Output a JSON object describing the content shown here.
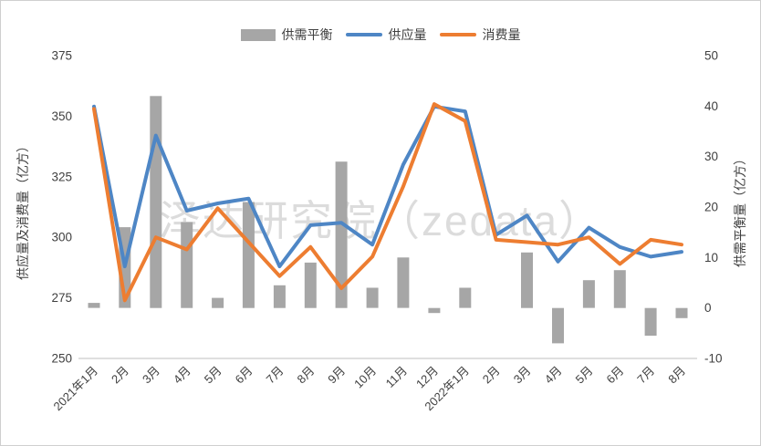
{
  "page": {
    "background": "#ffffff",
    "frame_color": "#cfcfcf",
    "text_color": "#404040"
  },
  "watermark": {
    "text": "泽达研究院（zedata）",
    "color": "#dcdcdc"
  },
  "legend": {
    "items": [
      {
        "label": "供需平衡",
        "type": "bar",
        "color": "#a6a6a6"
      },
      {
        "label": "供应量",
        "type": "line",
        "color": "#4e86c5"
      },
      {
        "label": "消费量",
        "type": "line",
        "color": "#ed7d31"
      }
    ]
  },
  "chart_data": {
    "type": "bar+line-combo",
    "title": "",
    "categories": [
      "2021年1月",
      "2月",
      "3月",
      "4月",
      "5月",
      "6月",
      "7月",
      "8月",
      "9月",
      "10月",
      "11月",
      "12月",
      "2022年1月",
      "2月",
      "3月",
      "4月",
      "5月",
      "6月",
      "7月",
      "8月"
    ],
    "series": [
      {
        "name": "供需平衡",
        "type": "bar",
        "axis": "right",
        "color": "#a6a6a6",
        "values": [
          1,
          16,
          42,
          17,
          2,
          21,
          4.5,
          9,
          29,
          4,
          10,
          -1,
          4,
          0,
          11,
          -7,
          5.5,
          7.5,
          -5.5,
          -2
        ]
      },
      {
        "name": "供应量",
        "type": "line",
        "axis": "left",
        "color": "#4e86c5",
        "values": [
          354,
          288,
          342,
          311,
          314,
          316,
          288,
          305,
          306,
          297,
          330,
          354,
          352,
          301,
          309,
          290,
          304,
          296,
          292,
          294
        ]
      },
      {
        "name": "消费量",
        "type": "line",
        "axis": "left",
        "color": "#ed7d31",
        "values": [
          353,
          274,
          300,
          295,
          312,
          298,
          284,
          296,
          279,
          292,
          321,
          355,
          348,
          299,
          298,
          297,
          300,
          289,
          299,
          297
        ]
      }
    ],
    "left_axis": {
      "title": "供应量及消费量（亿方）",
      "min": 250,
      "max": 375,
      "ticks": [
        375,
        350,
        325,
        300,
        275,
        250
      ]
    },
    "right_axis": {
      "title": "供需平衡量（亿方）",
      "min": -10,
      "max": 50,
      "ticks": [
        50,
        40,
        30,
        20,
        10,
        0,
        -10
      ]
    },
    "grid": false,
    "legend_position": "top",
    "x_label_rotation": -45,
    "axis_line_color": "#bfbfbf",
    "tick_font_size": 13.5,
    "x_font_size": 13
  }
}
